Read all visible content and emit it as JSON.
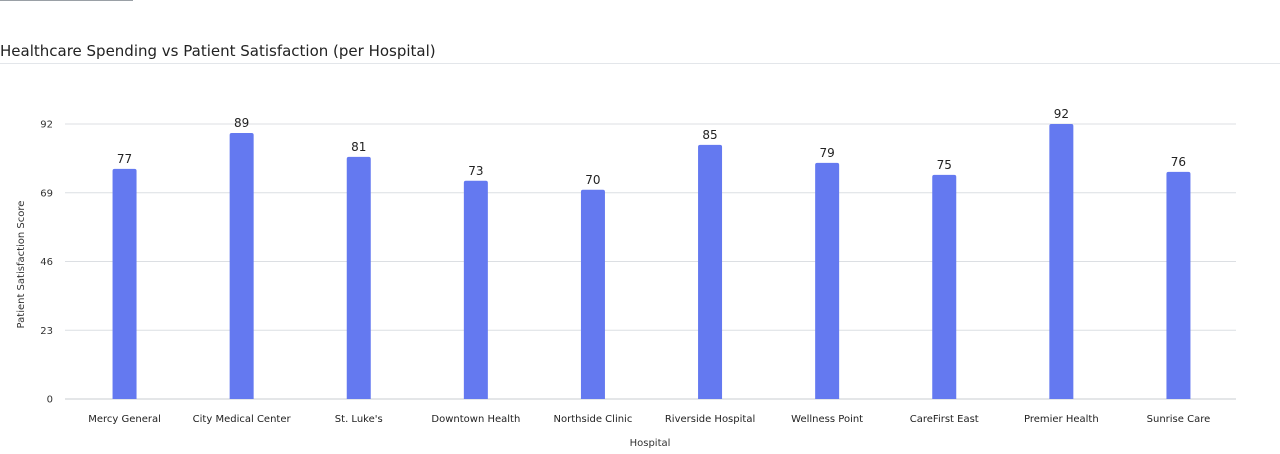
{
  "chart_data": {
    "type": "bar",
    "title": "Healthcare Spending vs Patient Satisfaction (per Hospital)",
    "xlabel": "Hospital",
    "ylabel": "Patient Satisfaction Score",
    "categories": [
      "Mercy General",
      "City Medical Center",
      "St. Luke's",
      "Downtown Health",
      "Northside Clinic",
      "Riverside Hospital",
      "Wellness Point",
      "CareFirst East",
      "Premier Health",
      "Sunrise Care"
    ],
    "values": [
      77,
      89,
      81,
      73,
      70,
      85,
      79,
      75,
      92,
      76
    ],
    "yticks": [
      0,
      23,
      46,
      69,
      92
    ],
    "ylim": [
      0,
      92
    ],
    "grid": true,
    "legend": "none",
    "data_labels": true,
    "colors": {
      "bar": "#6479F0",
      "grid": "#dcdfe3",
      "axis": "#c9cdd2"
    }
  }
}
